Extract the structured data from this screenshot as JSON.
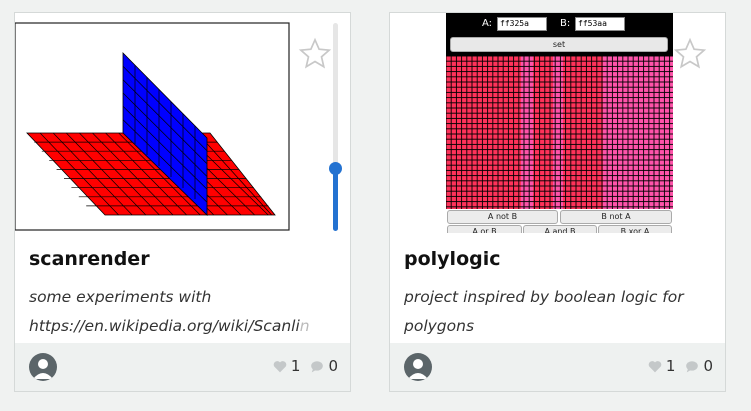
{
  "cards": [
    {
      "title": "scanrender",
      "description_line1": "some experiments with",
      "description_line2": "https://en.wikipedia.org/wiki/Scanli",
      "description_fade": "n",
      "likes": "1",
      "comments": "0",
      "slider_level": 0.3
    },
    {
      "title": "polylogic",
      "description_line1": "project inspired by boolean logic for",
      "description_line2": "polygons",
      "likes": "1",
      "comments": "0",
      "app": {
        "label_a": "A:",
        "value_a": "ff325a",
        "label_b": "B:",
        "value_b": "ff53aa",
        "set_label": "set",
        "btn_a_not_b": "A not B",
        "btn_b_not_a": "B not A",
        "btn_a_or_b": "A or B",
        "btn_a_and_b": "A and B",
        "btn_b_xor_a": "B xor A"
      }
    }
  ],
  "colors": {
    "red_plane": "#ff0000",
    "blue_plane": "#0000ff",
    "color_a": "#ff325a",
    "color_b": "#ff53aa",
    "accent": "#2372d1"
  },
  "icons": [
    "star-icon",
    "heart-icon",
    "comment-icon",
    "avatar-icon"
  ]
}
